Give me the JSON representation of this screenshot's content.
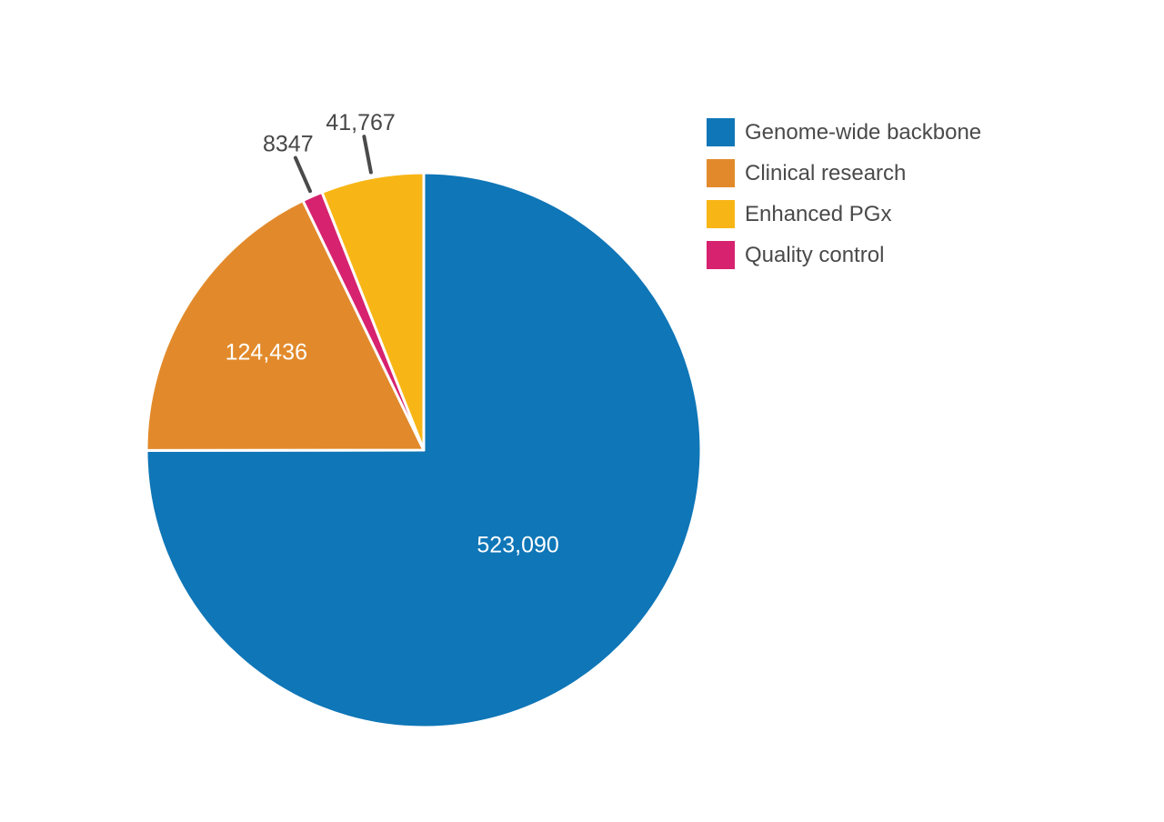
{
  "chart_data": {
    "type": "pie",
    "title": "",
    "total": 697640,
    "slices": [
      {
        "label": "Genome-wide backbone",
        "value": 523090,
        "display": "523,090",
        "color": "#0F76B7",
        "label_placement": "inside"
      },
      {
        "label": "Clinical research",
        "value": 124436,
        "display": "124,436",
        "color": "#E28A2B",
        "label_placement": "inside"
      },
      {
        "label": "Enhanced PGx",
        "value": 41767,
        "display": "41,767",
        "color": "#F8B616",
        "label_placement": "outside"
      },
      {
        "label": "Quality control",
        "value": 8347,
        "display": "8347",
        "color": "#D7226F",
        "label_placement": "outside"
      }
    ],
    "draw_order": [
      0,
      1,
      3,
      2
    ],
    "start_angle_deg": 0,
    "direction": "clockwise",
    "legend_position": "right",
    "grid": false,
    "value_label_colors": {
      "inside": "#FFFFFF",
      "outside": "#474747"
    },
    "leader_line_color": "#4A4A4A"
  }
}
